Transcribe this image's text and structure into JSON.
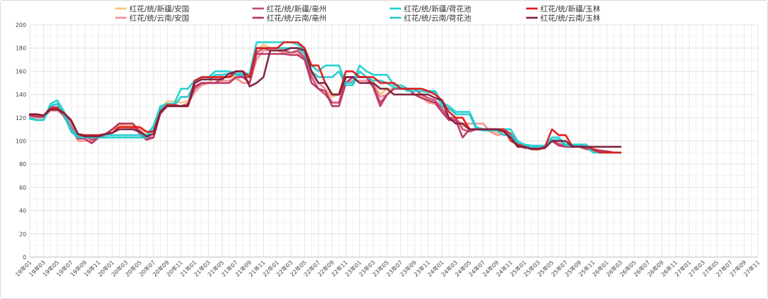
{
  "chart_data": {
    "type": "line",
    "title": "",
    "xlabel": "",
    "ylabel": "",
    "ylim": [
      0,
      200
    ],
    "yticks": [
      0,
      20,
      40,
      60,
      80,
      100,
      120,
      140,
      160,
      180,
      200
    ],
    "grid": true,
    "legend": "top",
    "x_ticks": [
      "19年01",
      "19年03",
      "19年05",
      "19年07",
      "19年09",
      "19年11",
      "20年01",
      "20年03",
      "20年05",
      "20年07",
      "20年09",
      "20年11",
      "21年01",
      "21年03",
      "21年05",
      "21年07",
      "21年09",
      "21年11",
      "22年01",
      "22年03",
      "22年05",
      "22年07",
      "22年09",
      "22年11",
      "23年01",
      "23年03",
      "23年05",
      "23年07",
      "23年09",
      "23年11",
      "24年01",
      "24年03",
      "24年05",
      "24年07",
      "24年09",
      "24年11",
      "25年01",
      "25年03",
      "25年05",
      "25年07",
      "25年09",
      "25年11",
      "26年01",
      "26年03",
      "26年05",
      "26年07",
      "26年09",
      "26年11",
      "27年01",
      "27年03",
      "27年05",
      "27年07",
      "27年09",
      "27年11"
    ],
    "series": [
      {
        "name": "红花/统/新疆/安国",
        "color": "#f6c27a",
        "values": [
          123,
          122,
          122,
          128,
          129,
          124,
          112,
          103,
          103,
          103,
          104,
          106,
          110,
          114,
          113,
          113,
          112,
          107,
          109,
          128,
          134,
          134,
          133,
          134,
          145,
          150,
          150,
          155,
          155,
          155,
          155,
          150,
          150,
          178,
          183,
          180,
          180,
          178,
          176,
          176,
          170,
          160,
          150,
          145,
          138,
          140,
          155,
          155,
          155,
          155,
          150,
          140,
          145,
          145,
          145,
          145,
          145,
          140,
          135,
          132,
          125,
          118,
          118,
          113,
          110,
          110,
          110,
          108,
          107,
          108,
          107,
          98,
          95,
          93,
          92,
          95,
          101,
          98,
          96,
          95,
          95,
          93,
          92,
          90,
          91,
          90,
          90
        ]
      },
      {
        "name": "红花/统/云南/安国",
        "color": "#f4908e",
        "values": [
          121,
          120,
          120,
          126,
          126,
          122,
          114,
          100,
          100,
          100,
          104,
          106,
          110,
          112,
          112,
          111,
          110,
          104,
          106,
          123,
          130,
          130,
          130,
          132,
          142,
          148,
          150,
          150,
          152,
          152,
          154,
          150,
          150,
          170,
          178,
          178,
          178,
          176,
          176,
          176,
          172,
          158,
          150,
          145,
          133,
          133,
          150,
          152,
          152,
          152,
          148,
          138,
          140,
          145,
          145,
          145,
          140,
          138,
          133,
          132,
          125,
          120,
          118,
          115,
          115,
          115,
          115,
          108,
          105,
          106,
          105,
          96,
          95,
          93,
          93,
          95,
          100,
          98,
          95,
          95,
          95,
          93,
          92,
          91,
          91,
          90,
          90
        ]
      },
      {
        "name": "红花/统/新疆/亳州",
        "color": "#c44a72",
        "values": [
          122,
          121,
          121,
          130,
          132,
          122,
          112,
          104,
          104,
          101,
          104,
          106,
          110,
          115,
          115,
          115,
          108,
          103,
          103,
          126,
          132,
          130,
          130,
          132,
          145,
          150,
          150,
          150,
          155,
          155,
          158,
          155,
          155,
          176,
          180,
          178,
          178,
          178,
          176,
          178,
          172,
          155,
          145,
          140,
          133,
          133,
          155,
          155,
          155,
          155,
          148,
          133,
          140,
          145,
          145,
          145,
          145,
          140,
          137,
          135,
          128,
          120,
          120,
          110,
          108,
          110,
          110,
          110,
          110,
          110,
          106,
          98,
          95,
          94,
          94,
          95,
          100,
          97,
          96,
          96,
          96,
          94,
          93,
          92,
          91,
          90,
          90
        ]
      },
      {
        "name": "红花/统/云南/亳州",
        "color": "#b8345f",
        "values": [
          122,
          121,
          121,
          129,
          129,
          121,
          110,
          102,
          102,
          98,
          103,
          105,
          110,
          115,
          115,
          115,
          106,
          101,
          103,
          124,
          130,
          130,
          130,
          130,
          147,
          150,
          150,
          150,
          150,
          150,
          155,
          155,
          150,
          175,
          175,
          175,
          175,
          175,
          174,
          174,
          170,
          150,
          145,
          143,
          130,
          130,
          150,
          155,
          155,
          155,
          146,
          130,
          140,
          145,
          145,
          145,
          140,
          137,
          135,
          133,
          125,
          118,
          118,
          103,
          110,
          110,
          110,
          110,
          110,
          110,
          106,
          96,
          94,
          94,
          93,
          95,
          100,
          96,
          95,
          95,
          95,
          93,
          92,
          91,
          91,
          90,
          90
        ]
      },
      {
        "name": "红花/统/新疆/荷花池",
        "color": "#20d0d0",
        "values": [
          120,
          118,
          118,
          132,
          135,
          125,
          110,
          105,
          105,
          105,
          105,
          105,
          105,
          105,
          105,
          105,
          105,
          105,
          113,
          130,
          132,
          132,
          145,
          145,
          152,
          155,
          155,
          160,
          160,
          160,
          158,
          158,
          158,
          185,
          185,
          185,
          185,
          185,
          185,
          183,
          178,
          165,
          160,
          165,
          165,
          165,
          150,
          150,
          165,
          160,
          157,
          157,
          157,
          148,
          148,
          145,
          145,
          145,
          143,
          143,
          133,
          130,
          125,
          125,
          125,
          112,
          110,
          110,
          110,
          110,
          110,
          100,
          97,
          96,
          96,
          96,
          103,
          103,
          97,
          97,
          97,
          97,
          90,
          90,
          90,
          90,
          90
        ]
      },
      {
        "name": "红花/统/云南/荷花池",
        "color": "#26c8cc",
        "values": [
          119,
          118,
          118,
          130,
          132,
          122,
          108,
          103,
          103,
          103,
          103,
          103,
          103,
          103,
          103,
          103,
          103,
          103,
          110,
          128,
          130,
          130,
          138,
          138,
          150,
          153,
          153,
          157,
          157,
          158,
          157,
          157,
          157,
          180,
          180,
          180,
          180,
          180,
          180,
          180,
          175,
          160,
          155,
          155,
          155,
          160,
          148,
          148,
          160,
          155,
          152,
          152,
          150,
          146,
          146,
          143,
          143,
          143,
          142,
          142,
          130,
          128,
          123,
          123,
          123,
          110,
          109,
          109,
          109,
          105,
          105,
          98,
          96,
          95,
          95,
          95,
          101,
          101,
          96,
          96,
          96,
          95,
          90,
          90,
          90,
          90,
          90
        ]
      },
      {
        "name": "红花/统/新疆/玉林",
        "color": "#e01818",
        "values": [
          123,
          123,
          122,
          128,
          128,
          124,
          117,
          106,
          105,
          105,
          105,
          106,
          107,
          112,
          112,
          112,
          112,
          108,
          108,
          125,
          131,
          131,
          130,
          130,
          152,
          155,
          155,
          155,
          155,
          155,
          160,
          160,
          155,
          180,
          180,
          180,
          180,
          185,
          185,
          185,
          180,
          165,
          165,
          150,
          140,
          140,
          160,
          160,
          155,
          155,
          155,
          150,
          150,
          150,
          145,
          145,
          145,
          145,
          143,
          140,
          135,
          125,
          120,
          120,
          110,
          110,
          110,
          110,
          110,
          110,
          100,
          97,
          95,
          93,
          93,
          95,
          110,
          105,
          105,
          95,
          95,
          95,
          93,
          90,
          90,
          90,
          90
        ]
      },
      {
        "name": "红花/统/云南/玉林",
        "color": "#7e1f3e",
        "values": [
          123,
          123,
          122,
          127,
          127,
          124,
          118,
          106,
          104,
          104,
          104,
          106,
          107,
          110,
          110,
          110,
          108,
          104,
          106,
          125,
          130,
          130,
          130,
          130,
          150,
          153,
          153,
          153,
          153,
          158,
          160,
          160,
          147,
          150,
          155,
          178,
          178,
          178,
          180,
          180,
          178,
          160,
          150,
          150,
          140,
          140,
          155,
          155,
          150,
          150,
          150,
          145,
          145,
          140,
          140,
          140,
          140,
          140,
          140,
          137,
          135,
          120,
          115,
          115,
          110,
          110,
          110,
          110,
          110,
          108,
          103,
          95,
          95,
          93,
          93,
          94,
          100,
          100,
          100,
          95,
          95,
          95,
          95,
          95,
          95,
          95,
          95
        ]
      }
    ]
  }
}
